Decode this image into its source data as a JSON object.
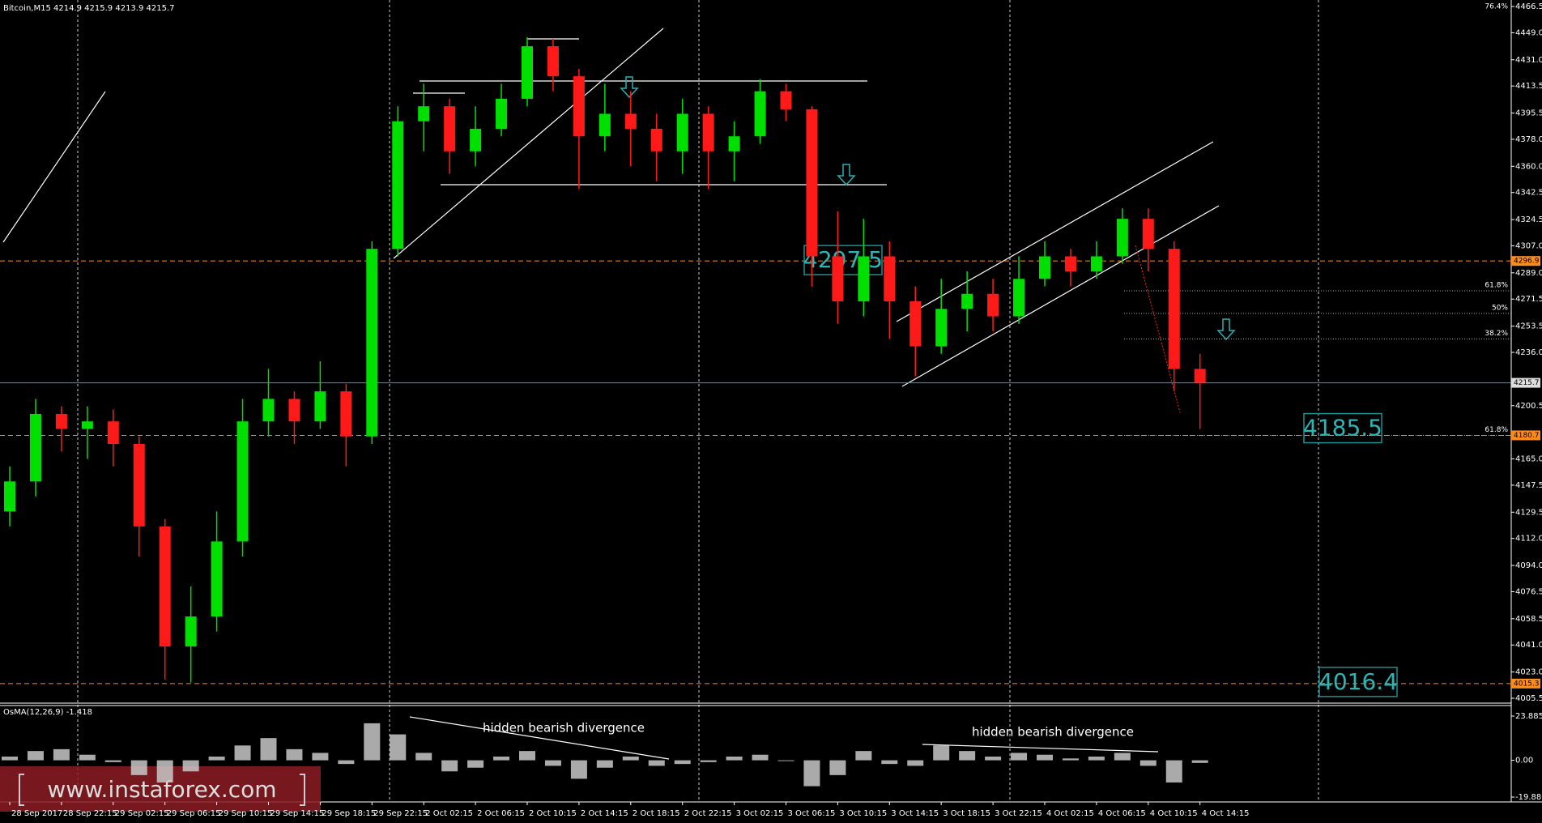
{
  "watermark": "www.instaforex.com",
  "chart_data": [
    {
      "type": "candlestick",
      "title": "Bitcoin,M15  4214.9 4215.9 4213.9 4215.7",
      "categories": [
        "28 Sep 2017",
        null,
        "28 Sep 22:15",
        null,
        "29 Sep 02:15",
        null,
        "29 Sep 06:15",
        null,
        "29 Sep 10:15",
        null,
        "29 Sep 14:15",
        null,
        "29 Sep 18:15",
        null,
        "29 Sep 22:15",
        null,
        "2 Oct 02:15",
        null,
        "2 Oct 06:15",
        null,
        "2 Oct 10:15",
        null,
        "2 Oct 14:15",
        null,
        "2 Oct 18:15",
        null,
        "2 Oct 22:15",
        null,
        "3 Oct 02:15",
        null,
        "3 Oct 06:15",
        null,
        "3 Oct 10:15",
        null,
        "3 Oct 14:15",
        null,
        "3 Oct 18:15",
        null,
        "3 Oct 22:15",
        null,
        "4 Oct 02:15",
        null,
        "4 Oct 06:15",
        null,
        "4 Oct 10:15",
        null,
        "4 Oct 14:15"
      ],
      "open": [
        4130,
        4150,
        4195,
        4185,
        4190,
        4175,
        4120,
        4040,
        4060,
        4110,
        4190,
        4205,
        4190,
        4210,
        4180,
        4305,
        4390,
        4400,
        4370,
        4385,
        4405,
        4440,
        4420,
        4380,
        4395,
        4385,
        4370,
        4395,
        4370,
        4380,
        4410,
        4398,
        4300,
        4270,
        4300,
        4270,
        4240,
        4265,
        4275,
        4260,
        4285,
        4300,
        4290,
        4300,
        4325,
        4305,
        4225
      ],
      "high": [
        4160,
        4205,
        4200,
        4200,
        4198,
        4180,
        4125,
        4080,
        4130,
        4205,
        4225,
        4210,
        4230,
        4215,
        4310,
        4400,
        4415,
        4405,
        4400,
        4415,
        4446,
        4445,
        4425,
        4415,
        4410,
        4395,
        4405,
        4400,
        4390,
        4418,
        4415,
        4400,
        4330,
        4325,
        4310,
        4280,
        4285,
        4290,
        4285,
        4300,
        4310,
        4305,
        4310,
        4332,
        4332,
        4310,
        4235
      ],
      "low": [
        4120,
        4140,
        4170,
        4165,
        4160,
        4100,
        4018,
        4016,
        4050,
        4100,
        4180,
        4175,
        4185,
        4160,
        4175,
        4300,
        4370,
        4355,
        4360,
        4380,
        4400,
        4410,
        4345,
        4370,
        4360,
        4350,
        4355,
        4345,
        4350,
        4375,
        4390,
        4280,
        4255,
        4260,
        4245,
        4220,
        4235,
        4250,
        4250,
        4255,
        4280,
        4280,
        4285,
        4295,
        4290,
        4210,
        4185
      ],
      "close": [
        4150,
        4195,
        4185,
        4190,
        4175,
        4120,
        4040,
        4060,
        4110,
        4190,
        4205,
        4190,
        4210,
        4180,
        4305,
        4390,
        4400,
        4370,
        4385,
        4405,
        4440,
        4420,
        4380,
        4395,
        4385,
        4370,
        4395,
        4370,
        4380,
        4410,
        4398,
        4300,
        4270,
        4300,
        4270,
        4240,
        4265,
        4275,
        4260,
        4285,
        4300,
        4290,
        4300,
        4325,
        4305,
        4225,
        4215.7
      ],
      "up_color": "#00e000",
      "down_color": "#ff1a1a",
      "ylim": [
        4005.5,
        4466.5
      ],
      "yticks": [
        4466.5,
        {
          "value": 4449,
          "label": "4449.0"
        },
        {
          "value": 4431,
          "label": "4431.0"
        },
        4413.5,
        4395.5,
        {
          "value": 4378,
          "label": "4378.0"
        },
        {
          "value": 4360,
          "label": "4360.0"
        },
        4342.5,
        4324.5,
        {
          "value": 4307,
          "label": "4307.0"
        },
        {
          "value": 4289,
          "label": "4289.0"
        },
        4271.5,
        4253.5,
        {
          "value": 4236,
          "label": "4236.0"
        },
        4200.5,
        {
          "value": 4165,
          "label": "4165.0"
        },
        4147.5,
        4129.5,
        {
          "value": 4112,
          "label": "4112.0"
        },
        {
          "value": 4094,
          "label": "4094.0"
        },
        4076.5,
        4058.5,
        {
          "value": 4041,
          "label": "4041.0"
        },
        {
          "value": 4023,
          "label": "4023.0"
        },
        4005.5
      ],
      "levels": [
        4296.9,
        4180.7,
        4015.3
      ],
      "level_color": "#ff8c1a",
      "last_price": 4215.7,
      "targets": [
        4297.5,
        4185.5,
        4016.4
      ],
      "fib_levels": [
        {
          "value": 4466.5,
          "label": "76.4%"
        },
        {
          "value": 4277,
          "label": "61.8%"
        },
        {
          "value": 4262,
          "label": "50%"
        },
        {
          "value": 4245,
          "label": "38.2%"
        },
        {
          "value": 4180.7,
          "label": "61.8%"
        }
      ]
    },
    {
      "type": "histogram",
      "title": "OsMA(12,26,9) -1.418",
      "color": "#c8c8c8",
      "values": [
        2,
        5,
        6,
        3,
        -1,
        -8,
        -12,
        -6,
        2,
        8,
        12,
        6,
        4,
        -2,
        20,
        14,
        4,
        -6,
        -4,
        2,
        5,
        -3,
        -10,
        -4,
        2,
        -3,
        -2,
        -1,
        2,
        3,
        0,
        -14,
        -8,
        5,
        -2,
        -3,
        8,
        5,
        2,
        4,
        3,
        1,
        2,
        4,
        -3,
        -12,
        -1.418
      ],
      "ylim": [
        -19.88,
        23.885
      ],
      "yticks": [
        23.885,
        {
          "value": 0,
          "label": "0.00"
        },
        {
          "value": -19.88,
          "label": "-19.880"
        }
      ],
      "annotations": [
        "hidden bearish divergence",
        "hidden bearish divergence"
      ]
    }
  ]
}
